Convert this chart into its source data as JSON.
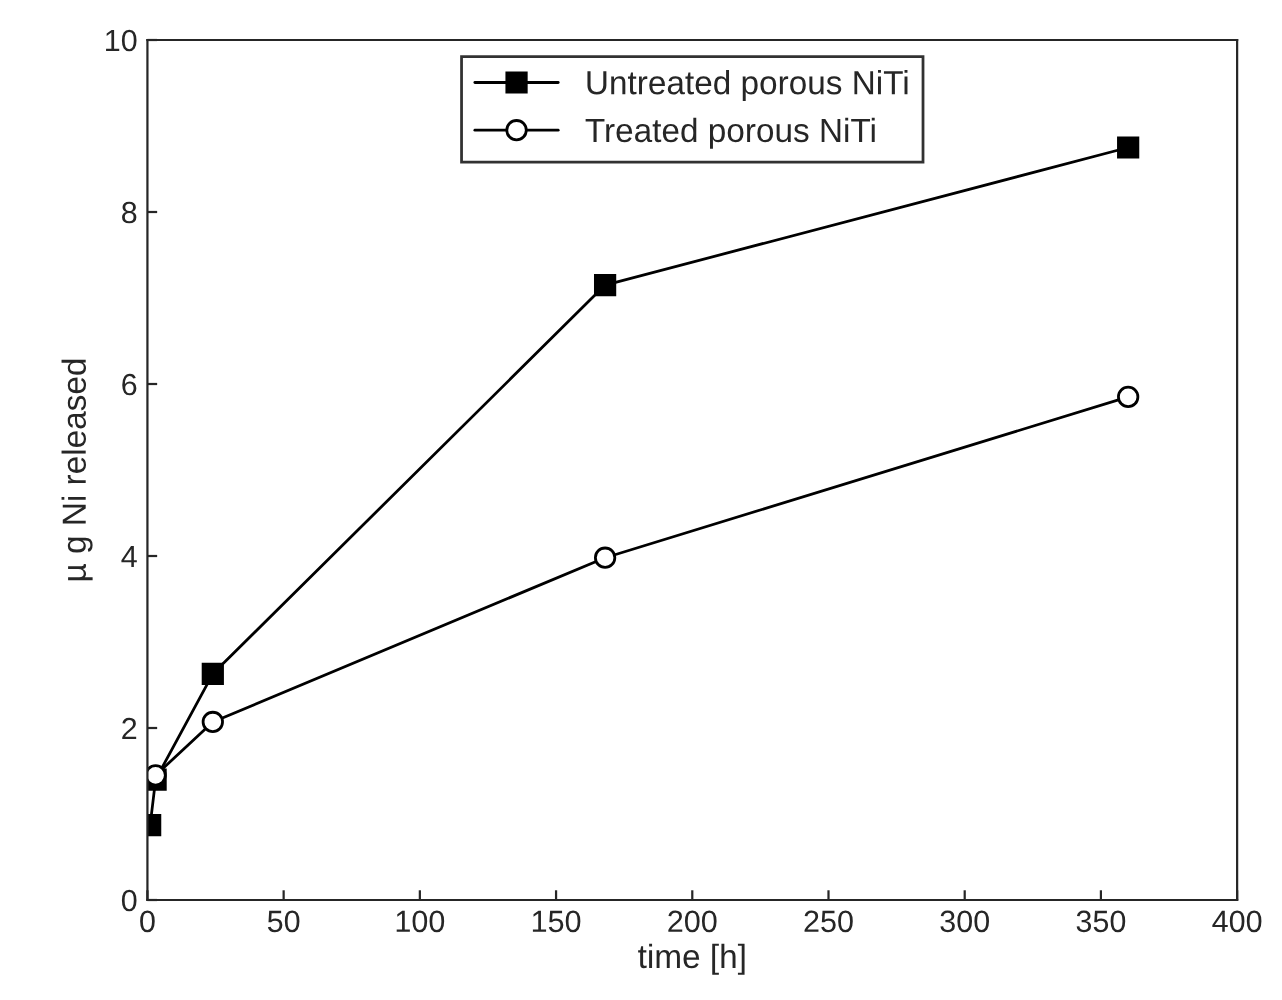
{
  "chart_data": {
    "type": "line",
    "xlabel": "time [h]",
    "ylabel": "µ g Ni released",
    "series": [
      {
        "name": "Untreated porous NiTi",
        "color": "#000000",
        "marker": "square",
        "x": [
          1,
          3,
          24,
          168,
          360
        ],
        "values": [
          0.87,
          1.4,
          2.63,
          7.15,
          8.75
        ]
      },
      {
        "name": "Treated porous NiTi",
        "color": "#000000",
        "marker": "circle",
        "x": [
          3,
          24,
          168,
          360
        ],
        "values": [
          1.45,
          2.07,
          3.98,
          5.85
        ]
      }
    ],
    "xlim": [
      0,
      400
    ],
    "xticks": [
      0,
      50,
      100,
      150,
      200,
      250,
      300,
      350,
      400
    ],
    "ylim": [
      0,
      10
    ],
    "yticks": [
      0,
      2,
      4,
      6,
      8,
      10
    ],
    "legend": "top",
    "grid": false,
    "line_style": "solid"
  }
}
